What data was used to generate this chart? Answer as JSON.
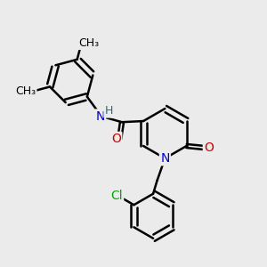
{
  "bg_color": "#ebebeb",
  "bond_color": "#000000",
  "bond_width": 1.8,
  "dbo": 0.12,
  "atom_colors": {
    "N": "#0000cc",
    "O": "#cc0000",
    "Cl": "#00aa00",
    "H": "#008080",
    "C": "#000000"
  },
  "fs": 10,
  "fsm": 9
}
